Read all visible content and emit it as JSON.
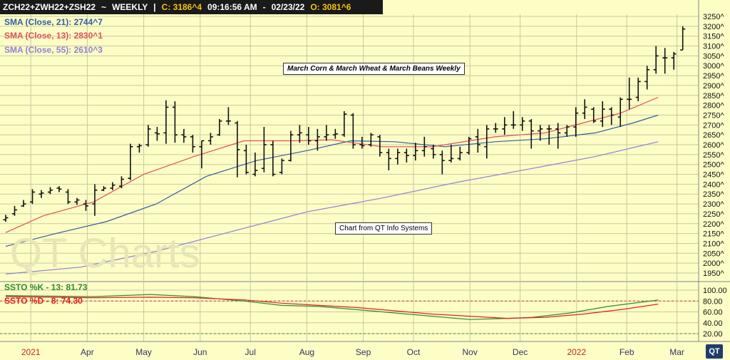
{
  "header": {
    "symbol": "ZCH22+ZWH22+ZSH22",
    "interval": "WEEKLY",
    "close_label": "C: 3186^4",
    "time": "09:16:56 AM",
    "date": "02/23/22",
    "open_label": "O: 3081^6"
  },
  "legend": {
    "sma21": "SMA (Close, 21): 2744^7",
    "sma13": "SMA (Close, 13): 2830^1",
    "sma55": "SMA (Close, 55): 2610^3",
    "ssto_k": "SSTO %K - 13: 81.73",
    "ssto_d": "SSTO %D - 8: 74.30"
  },
  "title_box": "March Corn & March Wheat & March Beans Weekly",
  "source_box": "Chart from QT Info Systems",
  "watermark": "QT Charts",
  "logo_text": "QT",
  "colors": {
    "background": "#fdfdc6",
    "grid": "#c9c9a0",
    "bars": "#111111",
    "sma21": "#2f5fa3",
    "sma13": "#e0505a",
    "sma55": "#8f80d8",
    "ssto_k": "#2e8b2e",
    "ssto_d": "#e02020",
    "month_major": "#cc2222",
    "month_minor": "#333366"
  },
  "chart_data": {
    "type": "ohlc",
    "title": "March Corn & March Wheat & March Beans Weekly",
    "price_axis": {
      "min": 1950,
      "max": 3250,
      "tick_labels": [
        "3250^",
        "3200^",
        "3150^",
        "3100^",
        "3050^",
        "3000^",
        "2950^",
        "2900^",
        "2850^",
        "2800^",
        "2750^",
        "2700^",
        "2650^",
        "2600^",
        "2550^",
        "2500^",
        "2450^",
        "2400^",
        "2350^",
        "2300^",
        "2250^",
        "2200^",
        "2150^",
        "2100^",
        "2050^",
        "2000^",
        "1950^"
      ]
    },
    "oscillator_axis": {
      "min": 20,
      "max": 100,
      "tick_labels": [
        "100.00",
        "80.00",
        "60.00",
        "40.00",
        "20.00"
      ],
      "reference_lines": [
        80,
        20
      ]
    },
    "time_axis": {
      "labels": [
        {
          "text": "2021",
          "week": 4,
          "major": true
        },
        {
          "text": "Apr",
          "week": 13,
          "major": false
        },
        {
          "text": "May",
          "week": 22,
          "major": false
        },
        {
          "text": "Jun",
          "week": 31,
          "major": false
        },
        {
          "text": "Jul",
          "week": 39,
          "major": false
        },
        {
          "text": "Aug",
          "week": 48,
          "major": false
        },
        {
          "text": "Sep",
          "week": 57,
          "major": false
        },
        {
          "text": "Oct",
          "week": 65,
          "major": false
        },
        {
          "text": "Nov",
          "week": 74,
          "major": false
        },
        {
          "text": "Dec",
          "week": 82,
          "major": false
        },
        {
          "text": "2022",
          "week": 91,
          "major": true
        },
        {
          "text": "Feb",
          "week": 99,
          "major": false
        },
        {
          "text": "Mar",
          "week": 107,
          "major": false
        }
      ]
    },
    "bars": [
      {
        "o": 2220,
        "h": 2245,
        "l": 2210,
        "c": 2230
      },
      {
        "o": 2250,
        "h": 2290,
        "l": 2240,
        "c": 2270
      },
      {
        "o": 2290,
        "h": 2320,
        "l": 2285,
        "c": 2300
      },
      {
        "o": 2310,
        "h": 2375,
        "l": 2300,
        "c": 2360
      },
      {
        "o": 2350,
        "h": 2370,
        "l": 2330,
        "c": 2355
      },
      {
        "o": 2360,
        "h": 2385,
        "l": 2350,
        "c": 2370
      },
      {
        "o": 2380,
        "h": 2390,
        "l": 2360,
        "c": 2375
      },
      {
        "o": 2360,
        "h": 2375,
        "l": 2300,
        "c": 2310
      },
      {
        "o": 2310,
        "h": 2330,
        "l": 2295,
        "c": 2320
      },
      {
        "o": 2300,
        "h": 2320,
        "l": 2265,
        "c": 2290
      },
      {
        "o": 2300,
        "h": 2400,
        "l": 2240,
        "c": 2370
      },
      {
        "o": 2370,
        "h": 2390,
        "l": 2365,
        "c": 2380
      },
      {
        "o": 2380,
        "h": 2410,
        "l": 2370,
        "c": 2395
      },
      {
        "o": 2390,
        "h": 2440,
        "l": 2380,
        "c": 2425
      },
      {
        "o": 2430,
        "h": 2605,
        "l": 2420,
        "c": 2590
      },
      {
        "o": 2590,
        "h": 2605,
        "l": 2560,
        "c": 2595
      },
      {
        "o": 2600,
        "h": 2700,
        "l": 2590,
        "c": 2680
      },
      {
        "o": 2660,
        "h": 2690,
        "l": 2620,
        "c": 2655
      },
      {
        "o": 2660,
        "h": 2825,
        "l": 2605,
        "c": 2790
      },
      {
        "o": 2790,
        "h": 2820,
        "l": 2610,
        "c": 2650
      },
      {
        "o": 2650,
        "h": 2680,
        "l": 2610,
        "c": 2640
      },
      {
        "o": 2640,
        "h": 2650,
        "l": 2560,
        "c": 2590
      },
      {
        "o": 2590,
        "h": 2620,
        "l": 2480,
        "c": 2620
      },
      {
        "o": 2620,
        "h": 2660,
        "l": 2600,
        "c": 2640
      },
      {
        "o": 2650,
        "h": 2730,
        "l": 2645,
        "c": 2720
      },
      {
        "o": 2720,
        "h": 2790,
        "l": 2700,
        "c": 2720
      },
      {
        "o": 2710,
        "h": 2720,
        "l": 2435,
        "c": 2575
      },
      {
        "o": 2570,
        "h": 2600,
        "l": 2450,
        "c": 2460
      },
      {
        "o": 2450,
        "h": 2560,
        "l": 2440,
        "c": 2470
      },
      {
        "o": 2480,
        "h": 2690,
        "l": 2460,
        "c": 2600
      },
      {
        "o": 2600,
        "h": 2620,
        "l": 2440,
        "c": 2450
      },
      {
        "o": 2460,
        "h": 2530,
        "l": 2450,
        "c": 2520
      },
      {
        "o": 2520,
        "h": 2670,
        "l": 2515,
        "c": 2650
      },
      {
        "o": 2650,
        "h": 2700,
        "l": 2610,
        "c": 2660
      },
      {
        "o": 2650,
        "h": 2690,
        "l": 2600,
        "c": 2620
      },
      {
        "o": 2620,
        "h": 2680,
        "l": 2570,
        "c": 2640
      },
      {
        "o": 2640,
        "h": 2700,
        "l": 2620,
        "c": 2650
      },
      {
        "o": 2650,
        "h": 2680,
        "l": 2630,
        "c": 2655
      },
      {
        "o": 2650,
        "h": 2770,
        "l": 2640,
        "c": 2755
      },
      {
        "o": 2750,
        "h": 2760,
        "l": 2580,
        "c": 2600
      },
      {
        "o": 2600,
        "h": 2640,
        "l": 2580,
        "c": 2595
      },
      {
        "o": 2600,
        "h": 2660,
        "l": 2590,
        "c": 2650
      },
      {
        "o": 2640,
        "h": 2650,
        "l": 2540,
        "c": 2560
      },
      {
        "o": 2560,
        "h": 2580,
        "l": 2470,
        "c": 2530
      },
      {
        "o": 2530,
        "h": 2580,
        "l": 2500,
        "c": 2560
      },
      {
        "o": 2560,
        "h": 2580,
        "l": 2510,
        "c": 2545
      },
      {
        "o": 2545,
        "h": 2610,
        "l": 2520,
        "c": 2570
      },
      {
        "o": 2570,
        "h": 2640,
        "l": 2540,
        "c": 2590
      },
      {
        "o": 2580,
        "h": 2600,
        "l": 2530,
        "c": 2550
      },
      {
        "o": 2550,
        "h": 2570,
        "l": 2450,
        "c": 2520
      },
      {
        "o": 2520,
        "h": 2600,
        "l": 2510,
        "c": 2530
      },
      {
        "o": 2530,
        "h": 2590,
        "l": 2520,
        "c": 2560
      },
      {
        "o": 2560,
        "h": 2640,
        "l": 2550,
        "c": 2630
      },
      {
        "o": 2640,
        "h": 2680,
        "l": 2560,
        "c": 2600
      },
      {
        "o": 2590,
        "h": 2700,
        "l": 2530,
        "c": 2680
      },
      {
        "o": 2680,
        "h": 2710,
        "l": 2660,
        "c": 2680
      },
      {
        "o": 2680,
        "h": 2740,
        "l": 2650,
        "c": 2700
      },
      {
        "o": 2700,
        "h": 2770,
        "l": 2680,
        "c": 2700
      },
      {
        "o": 2700,
        "h": 2740,
        "l": 2670,
        "c": 2720
      },
      {
        "o": 2720,
        "h": 2730,
        "l": 2580,
        "c": 2670
      },
      {
        "o": 2670,
        "h": 2700,
        "l": 2620,
        "c": 2680
      },
      {
        "o": 2680,
        "h": 2700,
        "l": 2600,
        "c": 2680
      },
      {
        "o": 2680,
        "h": 2710,
        "l": 2580,
        "c": 2660
      },
      {
        "o": 2660,
        "h": 2700,
        "l": 2640,
        "c": 2690
      },
      {
        "o": 2690,
        "h": 2790,
        "l": 2640,
        "c": 2760
      },
      {
        "o": 2760,
        "h": 2830,
        "l": 2730,
        "c": 2790
      },
      {
        "o": 2780,
        "h": 2790,
        "l": 2710,
        "c": 2720
      },
      {
        "o": 2720,
        "h": 2820,
        "l": 2690,
        "c": 2780
      },
      {
        "o": 2780,
        "h": 2790,
        "l": 2700,
        "c": 2750
      },
      {
        "o": 2740,
        "h": 2840,
        "l": 2690,
        "c": 2830
      },
      {
        "o": 2830,
        "h": 2940,
        "l": 2780,
        "c": 2830
      },
      {
        "o": 2840,
        "h": 2940,
        "l": 2820,
        "c": 2920
      },
      {
        "o": 2920,
        "h": 3000,
        "l": 2880,
        "c": 2980
      },
      {
        "o": 2980,
        "h": 3100,
        "l": 2960,
        "c": 3050
      },
      {
        "o": 3040,
        "h": 3090,
        "l": 2960,
        "c": 3040
      },
      {
        "o": 3040,
        "h": 3070,
        "l": 2980,
        "c": 3060
      },
      {
        "o": 3080,
        "h": 3200,
        "l": 3080,
        "c": 3186
      }
    ],
    "series": [
      {
        "name": "SMA (Close, 21)",
        "points": [
          [
            0,
            2085
          ],
          [
            8,
            2150
          ],
          [
            16,
            2210
          ],
          [
            24,
            2300
          ],
          [
            32,
            2440
          ],
          [
            40,
            2520
          ],
          [
            48,
            2570
          ],
          [
            55,
            2620
          ],
          [
            62,
            2615
          ],
          [
            70,
            2590
          ],
          [
            78,
            2615
          ],
          [
            86,
            2630
          ],
          [
            94,
            2660
          ],
          [
            100,
            2710
          ],
          [
            104,
            2750
          ]
        ]
      },
      {
        "name": "SMA (Close, 13)",
        "points": [
          [
            0,
            2155
          ],
          [
            6,
            2240
          ],
          [
            14,
            2310
          ],
          [
            22,
            2450
          ],
          [
            30,
            2540
          ],
          [
            38,
            2620
          ],
          [
            46,
            2620
          ],
          [
            52,
            2625
          ],
          [
            60,
            2590
          ],
          [
            68,
            2590
          ],
          [
            78,
            2640
          ],
          [
            86,
            2660
          ],
          [
            92,
            2710
          ],
          [
            98,
            2760
          ],
          [
            104,
            2840
          ]
        ]
      },
      {
        "name": "SMA (Close, 55)",
        "points": [
          [
            0,
            1945
          ],
          [
            12,
            1980
          ],
          [
            24,
            2060
          ],
          [
            36,
            2160
          ],
          [
            48,
            2260
          ],
          [
            60,
            2330
          ],
          [
            72,
            2410
          ],
          [
            84,
            2480
          ],
          [
            94,
            2540
          ],
          [
            104,
            2615
          ]
        ]
      },
      {
        "name": "SSTO %K - 13",
        "points": [
          [
            0,
            90
          ],
          [
            14,
            88
          ],
          [
            23,
            92
          ],
          [
            30,
            88
          ],
          [
            38,
            80
          ],
          [
            44,
            72
          ],
          [
            50,
            70
          ],
          [
            56,
            64
          ],
          [
            62,
            58
          ],
          [
            68,
            52
          ],
          [
            74,
            46
          ],
          [
            80,
            48
          ],
          [
            84,
            50
          ],
          [
            90,
            58
          ],
          [
            96,
            70
          ],
          [
            104,
            81.73
          ]
        ]
      },
      {
        "name": "SSTO %D - 8",
        "points": [
          [
            0,
            88
          ],
          [
            14,
            86
          ],
          [
            23,
            87
          ],
          [
            30,
            86
          ],
          [
            38,
            82
          ],
          [
            44,
            76
          ],
          [
            50,
            72
          ],
          [
            56,
            68
          ],
          [
            62,
            62
          ],
          [
            68,
            56
          ],
          [
            74,
            52
          ],
          [
            80,
            48
          ],
          [
            86,
            50
          ],
          [
            92,
            56
          ],
          [
            98,
            64
          ],
          [
            104,
            74.3
          ]
        ]
      }
    ]
  }
}
